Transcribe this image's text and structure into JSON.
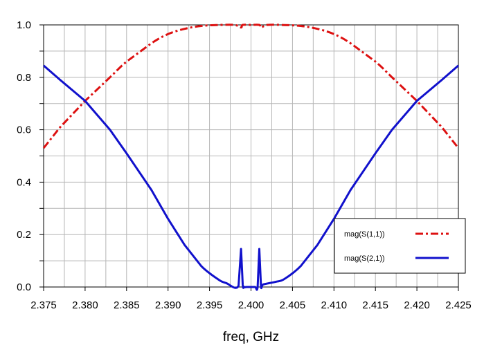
{
  "chart_data": {
    "type": "line",
    "xlabel": "freq, GHz",
    "ylabel": "",
    "xlim": [
      2.375,
      2.425
    ],
    "ylim": [
      0.0,
      1.0
    ],
    "x_ticks": [
      "2.375",
      "2.380",
      "2.385",
      "2.390",
      "2.395",
      "2.400",
      "2.405",
      "2.410",
      "2.415",
      "2.420",
      "2.425"
    ],
    "y_ticks": [
      "0.0",
      "0.2",
      "0.4",
      "0.6",
      "0.8",
      "1.0"
    ],
    "grid": true,
    "legend_position": "bottom-right",
    "series": [
      {
        "name": "mag(S(1,1))",
        "color": "#dd1111",
        "style": "dash-dot",
        "x": [
          2.375,
          2.377,
          2.38,
          2.383,
          2.385,
          2.388,
          2.39,
          2.392,
          2.394,
          2.396,
          2.398,
          2.3988,
          2.399,
          2.4,
          2.401,
          2.4012,
          2.402,
          2.404,
          2.406,
          2.408,
          2.41,
          2.412,
          2.415,
          2.417,
          2.42,
          2.423,
          2.425
        ],
        "y": [
          0.53,
          0.61,
          0.71,
          0.8,
          0.86,
          0.93,
          0.965,
          0.985,
          0.996,
          0.9995,
          1.0,
          0.99,
          1.0,
          1.0,
          1.0,
          0.99,
          1.0,
          0.9995,
          0.996,
          0.985,
          0.965,
          0.93,
          0.86,
          0.8,
          0.71,
          0.61,
          0.53
        ]
      },
      {
        "name": "mag(S(2,1))",
        "color": "#1111cc",
        "style": "solid",
        "x": [
          2.375,
          2.377,
          2.38,
          2.383,
          2.385,
          2.388,
          2.39,
          2.392,
          2.394,
          2.396,
          2.397,
          2.3985,
          2.3988,
          2.399,
          2.3992,
          2.3995,
          2.4,
          2.4005,
          2.4008,
          2.401,
          2.4012,
          2.4015,
          2.403,
          2.404,
          2.406,
          2.408,
          2.41,
          2.412,
          2.415,
          2.417,
          2.42,
          2.423,
          2.425
        ],
        "y": [
          0.845,
          0.79,
          0.71,
          0.6,
          0.51,
          0.37,
          0.26,
          0.16,
          0.08,
          0.03,
          0.015,
          0.005,
          0.145,
          0.01,
          0.0,
          0.0,
          0.0,
          0.0,
          0.0,
          0.145,
          0.005,
          0.01,
          0.02,
          0.03,
          0.08,
          0.16,
          0.26,
          0.37,
          0.51,
          0.6,
          0.71,
          0.79,
          0.845
        ]
      }
    ]
  }
}
